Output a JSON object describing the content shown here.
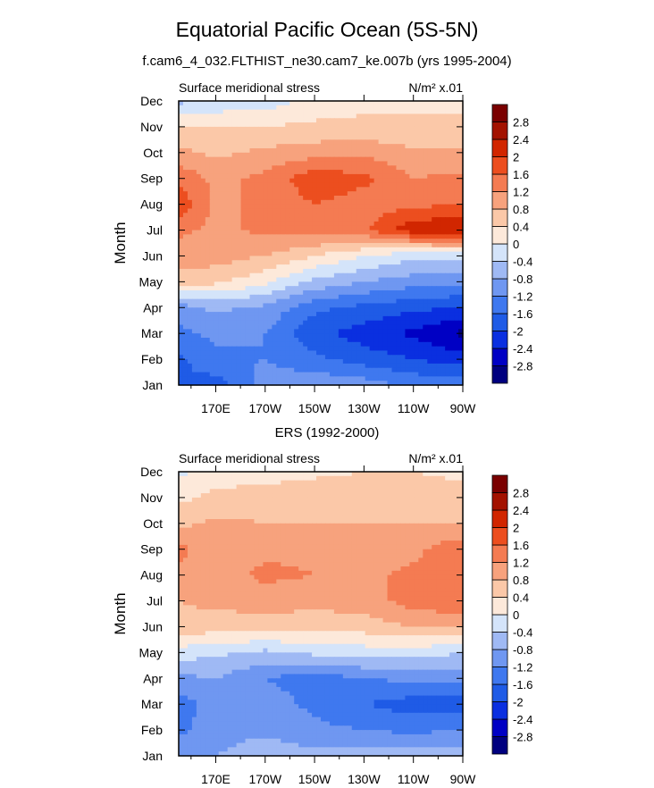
{
  "figure": {
    "title": "Equatorial Pacific Ocean (5S-5N)",
    "subtitle": "f.cam6_4_032.FLTHIST_ne30.cam7_ke.007b (yrs 1995-2004)",
    "second_panel_title": "ERS (1992-2000)"
  },
  "chart_data": [
    {
      "type": "heatmap",
      "title": "f.cam6_4_032.FLTHIST_ne30.cam7_ke.007b (yrs 1995-2004)",
      "left_string": "Surface meridional stress",
      "right_string": "N/m² x.01",
      "ylabel": "Month",
      "y_ticks": [
        "Jan",
        "Feb",
        "Mar",
        "Apr",
        "May",
        "Jun",
        "Jul",
        "Aug",
        "Sep",
        "Oct",
        "Nov",
        "Dec"
      ],
      "x_ticks": [
        "170E",
        "170W",
        "150W",
        "130W",
        "110W",
        "90W"
      ],
      "x_tick_lon": [
        170,
        190,
        210,
        230,
        250,
        270
      ],
      "xlim": [
        155,
        270
      ],
      "colorbar_labels": [
        "-2.8",
        "-2.4",
        "-2",
        "-1.6",
        "-1.2",
        "-0.8",
        "-0.4",
        "0",
        "0.4",
        "0.8",
        "1.2",
        "1.6",
        "2",
        "2.4",
        "2.8"
      ],
      "lon": [
        155,
        170,
        190,
        210,
        230,
        250,
        270
      ],
      "months": [
        "Jan",
        "Feb",
        "Mar",
        "Apr",
        "May",
        "Jun",
        "Jul",
        "Aug",
        "Sep",
        "Oct",
        "Nov",
        "Dec"
      ],
      "values": [
        [
          -1.6,
          -1.8,
          -1.0,
          -0.9,
          -1.0,
          -1.3,
          -1.3
        ],
        [
          -1.7,
          -1.3,
          -1.2,
          -1.5,
          -1.8,
          -2.0,
          -2.2
        ],
        [
          -1.3,
          -1.1,
          -1.2,
          -1.9,
          -2.2,
          -2.5,
          -2.9
        ],
        [
          -1.0,
          -0.7,
          -0.9,
          -1.5,
          -1.7,
          -1.9,
          -2.0
        ],
        [
          0.6,
          0.5,
          0.1,
          -0.5,
          -0.8,
          -1.0,
          -1.1
        ],
        [
          1.0,
          1.0,
          0.8,
          0.4,
          0.0,
          -0.3,
          -0.3
        ],
        [
          1.3,
          1.1,
          1.3,
          1.4,
          1.5,
          2.3,
          2.4
        ],
        [
          1.9,
          1.1,
          1.3,
          1.6,
          1.4,
          1.5,
          1.6
        ],
        [
          1.5,
          1.1,
          1.3,
          1.9,
          1.7,
          1.2,
          1.3
        ],
        [
          0.9,
          0.7,
          0.9,
          1.0,
          1.1,
          0.9,
          0.9
        ],
        [
          0.4,
          0.4,
          0.4,
          0.5,
          0.5,
          0.4,
          0.5
        ],
        [
          -0.5,
          -0.3,
          -0.2,
          0.1,
          0.3,
          0.4,
          0.3
        ]
      ]
    },
    {
      "type": "heatmap",
      "title": "ERS (1992-2000)",
      "left_string": "Surface meridional stress",
      "right_string": "N/m² x.01",
      "ylabel": "Month",
      "y_ticks": [
        "Jan",
        "Feb",
        "Mar",
        "Apr",
        "May",
        "Jun",
        "Jul",
        "Aug",
        "Sep",
        "Oct",
        "Nov",
        "Dec"
      ],
      "x_ticks": [
        "170E",
        "170W",
        "150W",
        "130W",
        "110W",
        "90W"
      ],
      "x_tick_lon": [
        170,
        190,
        210,
        230,
        250,
        270
      ],
      "xlim": [
        155,
        270
      ],
      "colorbar_labels": [
        "-2.8",
        "-2.4",
        "-2",
        "-1.6",
        "-1.2",
        "-0.8",
        "-0.4",
        "0",
        "0.4",
        "0.8",
        "1.2",
        "1.6",
        "2",
        "2.4",
        "2.8"
      ],
      "lon": [
        155,
        170,
        190,
        210,
        230,
        250,
        270
      ],
      "months": [
        "Jan",
        "Feb",
        "Mar",
        "Apr",
        "May",
        "Jun",
        "Jul",
        "Aug",
        "Sep",
        "Oct",
        "Nov",
        "Dec"
      ],
      "values": [
        [
          -0.9,
          -0.8,
          -0.5,
          -0.7,
          -0.6,
          -0.5,
          -0.6
        ],
        [
          -1.3,
          -1.0,
          -0.9,
          -1.1,
          -1.2,
          -1.3,
          -1.2
        ],
        [
          -1.4,
          -1.0,
          -1.0,
          -1.3,
          -1.6,
          -1.8,
          -1.8
        ],
        [
          -0.9,
          -0.8,
          -1.2,
          -1.4,
          -1.2,
          -1.1,
          -1.0
        ],
        [
          -0.2,
          -0.3,
          -0.5,
          -0.3,
          -0.2,
          -0.2,
          -0.4
        ],
        [
          0.7,
          0.6,
          0.6,
          0.6,
          0.6,
          0.8,
          0.9
        ],
        [
          0.8,
          0.9,
          1.0,
          0.9,
          1.0,
          1.4,
          1.5
        ],
        [
          1.1,
          1.0,
          1.3,
          1.2,
          1.1,
          1.3,
          1.4
        ],
        [
          1.3,
          1.0,
          1.1,
          1.1,
          1.0,
          1.1,
          1.5
        ],
        [
          0.7,
          0.9,
          0.8,
          0.8,
          0.8,
          0.8,
          0.8
        ],
        [
          0.3,
          0.5,
          0.6,
          0.7,
          0.7,
          0.6,
          0.6
        ],
        [
          -0.1,
          0.2,
          0.2,
          0.3,
          0.4,
          0.4,
          0.3
        ]
      ]
    }
  ],
  "colors": {
    "palette": [
      "#00007f",
      "#0000c4",
      "#0a2fe0",
      "#1f5be6",
      "#3f78ef",
      "#6f97f1",
      "#9fb9f4",
      "#d4e4fa",
      "#fde9da",
      "#fbc8a8",
      "#f7a27d",
      "#f47b52",
      "#ec4e1f",
      "#d12600",
      "#a31200",
      "#7a0000"
    ]
  }
}
